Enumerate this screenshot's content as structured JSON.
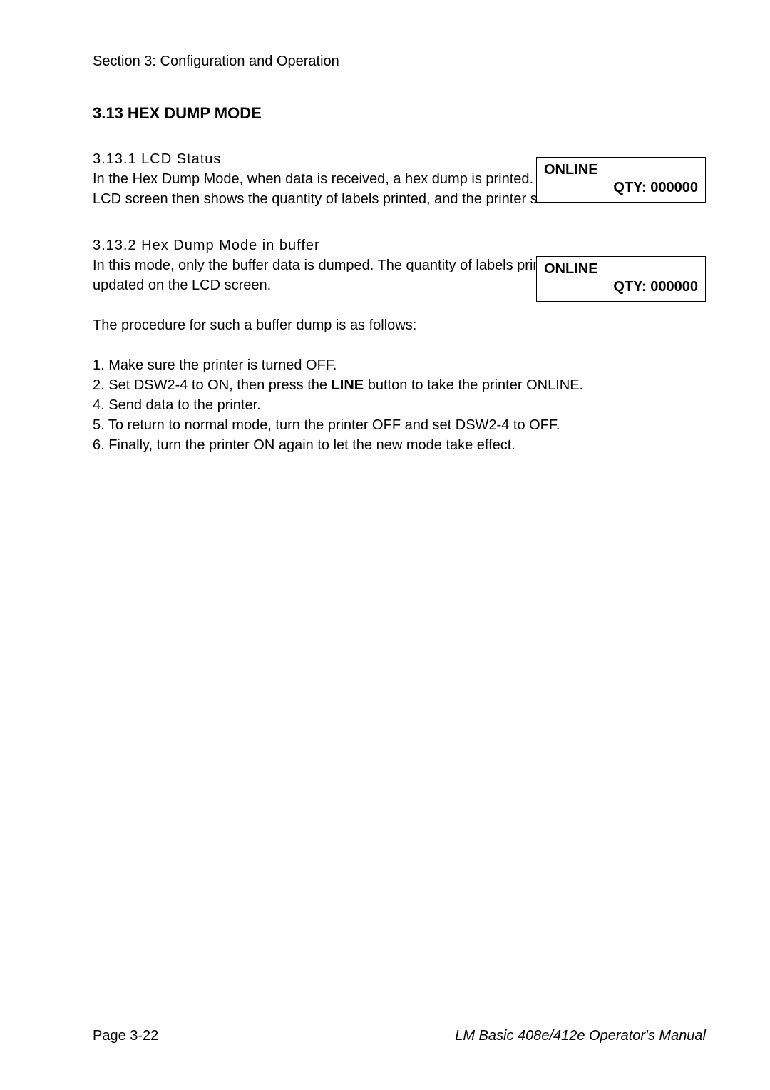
{
  "header": {
    "section_label": "Section 3: Configuration and Operation"
  },
  "main_heading": "3.13 HEX DUMP MODE",
  "section1": {
    "heading": "3.13.1 LCD Status",
    "para": "In the Hex Dump Mode, when data is received, a hex dump is printed. The LCD screen then shows the quantity of labels printed, and the printer status.",
    "lcd": {
      "line1": "ONLINE",
      "line2": "QTY: 000000"
    }
  },
  "section2": {
    "heading": "3.13.2 Hex Dump Mode in buffer",
    "para1": "In this mode, only the buffer data is dumped. The quantity of labels printed is updated on the LCD screen.",
    "para2": "The procedure for such a buffer dump is as follows:",
    "lcd": {
      "line1": "ONLINE",
      "line2": "QTY: 000000"
    }
  },
  "steps": {
    "s1": "1. Make sure the printer is turned OFF.",
    "s2a": "2. Set DSW2-4 to ON, then press the ",
    "s2_bold": "LINE",
    "s2b": " button to take the printer ONLINE.",
    "s4": "4. Send data to the printer.",
    "s5": "5. To return to normal mode, turn the printer OFF and set DSW2-4 to OFF.",
    "s6": "6. Finally, turn the printer ON again to let the new mode take effect."
  },
  "footer": {
    "page": "Page 3-22",
    "manual": "LM Basic 408e/412e Operator's Manual"
  }
}
